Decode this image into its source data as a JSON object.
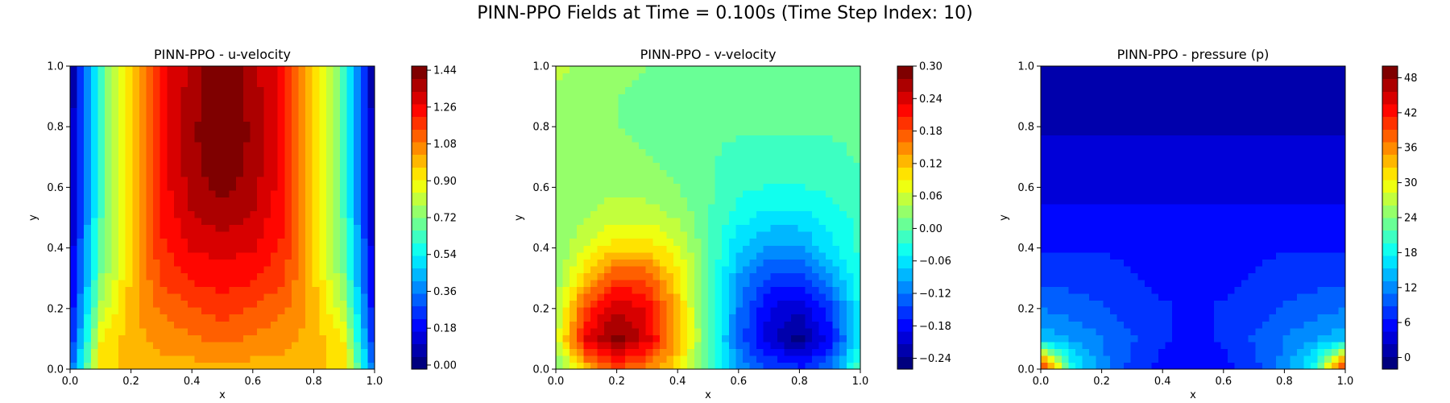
{
  "figure": {
    "suptitle": "PINN-PPO Fields at Time = 0.100s (Time Step Index: 10)"
  },
  "colormap": {
    "name": "jet",
    "stops": [
      "#00007f",
      "#0000ff",
      "#0080ff",
      "#00ffff",
      "#7fff80",
      "#ffff00",
      "#ff8000",
      "#ff0000",
      "#7f0000"
    ]
  },
  "chart_data": [
    {
      "type": "heatmap",
      "title": "PINN-PPO - u-velocity",
      "xlabel": "x",
      "ylabel": "y",
      "xlim": [
        0.0,
        1.0
      ],
      "ylim": [
        0.0,
        1.0
      ],
      "xticks": [
        "0.0",
        "0.2",
        "0.4",
        "0.6",
        "0.8",
        "1.0"
      ],
      "yticks": [
        "0.0",
        "0.2",
        "0.4",
        "0.6",
        "0.8",
        "1.0"
      ],
      "x": [
        0.0,
        0.1,
        0.2,
        0.3,
        0.4,
        0.5,
        0.6,
        0.7,
        0.8,
        0.9,
        1.0
      ],
      "y": [
        0.0,
        0.1,
        0.2,
        0.3,
        0.4,
        0.5,
        0.6,
        0.7,
        0.8,
        0.9,
        1.0
      ],
      "z": [
        [
          0.3,
          0.95,
          0.98,
          1.0,
          1.0,
          1.0,
          1.0,
          1.0,
          0.98,
          0.95,
          0.3
        ],
        [
          0.2,
          0.9,
          1.0,
          1.05,
          1.08,
          1.1,
          1.08,
          1.05,
          1.0,
          0.9,
          0.2
        ],
        [
          0.15,
          0.8,
          1.0,
          1.1,
          1.15,
          1.18,
          1.15,
          1.1,
          1.0,
          0.8,
          0.15
        ],
        [
          0.12,
          0.72,
          0.98,
          1.16,
          1.22,
          1.25,
          1.22,
          1.16,
          0.98,
          0.72,
          0.12
        ],
        [
          0.1,
          0.68,
          0.98,
          1.2,
          1.28,
          1.3,
          1.28,
          1.2,
          0.98,
          0.68,
          0.1
        ],
        [
          0.08,
          0.65,
          0.98,
          1.22,
          1.33,
          1.37,
          1.33,
          1.22,
          0.98,
          0.65,
          0.08
        ],
        [
          0.06,
          0.64,
          0.98,
          1.24,
          1.36,
          1.42,
          1.36,
          1.24,
          0.98,
          0.64,
          0.06
        ],
        [
          0.05,
          0.64,
          0.98,
          1.25,
          1.38,
          1.46,
          1.38,
          1.25,
          0.98,
          0.64,
          0.05
        ],
        [
          0.04,
          0.64,
          0.98,
          1.25,
          1.38,
          1.48,
          1.38,
          1.25,
          0.98,
          0.64,
          0.04
        ],
        [
          0.03,
          0.64,
          0.98,
          1.25,
          1.37,
          1.48,
          1.37,
          1.25,
          0.98,
          0.64,
          0.03
        ],
        [
          0.03,
          0.64,
          0.98,
          1.24,
          1.36,
          1.46,
          1.36,
          1.24,
          0.98,
          0.64,
          0.03
        ]
      ],
      "colorbar": {
        "range": [
          -0.02,
          1.46
        ],
        "ticks": [
          "0.00",
          "0.18",
          "0.36",
          "0.54",
          "0.72",
          "0.90",
          "1.08",
          "1.26",
          "1.44"
        ],
        "tick_values": [
          0.0,
          0.18,
          0.36,
          0.54,
          0.72,
          0.9,
          1.08,
          1.26,
          1.44
        ]
      }
    },
    {
      "type": "heatmap",
      "title": "PINN-PPO - v-velocity",
      "xlabel": "x",
      "ylabel": "y",
      "xlim": [
        0.0,
        1.0
      ],
      "ylim": [
        0.0,
        1.0
      ],
      "xticks": [
        "0.0",
        "0.2",
        "0.4",
        "0.6",
        "0.8",
        "1.0"
      ],
      "yticks": [
        "0.0",
        "0.2",
        "0.4",
        "0.6",
        "0.8",
        "1.0"
      ],
      "x": [
        0.0,
        0.1,
        0.2,
        0.3,
        0.4,
        0.5,
        0.6,
        0.7,
        0.8,
        0.9,
        1.0
      ],
      "y": [
        0.0,
        0.1,
        0.2,
        0.3,
        0.4,
        0.5,
        0.6,
        0.7,
        0.8,
        0.9,
        1.0
      ],
      "z": [
        [
          0.0,
          0.12,
          0.18,
          0.15,
          0.1,
          0.0,
          -0.1,
          -0.14,
          -0.16,
          -0.12,
          0.0
        ],
        [
          0.05,
          0.24,
          0.29,
          0.24,
          0.13,
          0.0,
          -0.13,
          -0.2,
          -0.25,
          -0.18,
          -0.05
        ],
        [
          0.04,
          0.19,
          0.25,
          0.23,
          0.12,
          0.0,
          -0.12,
          -0.19,
          -0.21,
          -0.15,
          -0.04
        ],
        [
          0.03,
          0.12,
          0.19,
          0.18,
          0.1,
          0.0,
          -0.1,
          -0.15,
          -0.16,
          -0.1,
          -0.03
        ],
        [
          0.02,
          0.07,
          0.11,
          0.11,
          0.07,
          0.0,
          -0.07,
          -0.1,
          -0.1,
          -0.06,
          -0.02
        ],
        [
          0.02,
          0.04,
          0.06,
          0.06,
          0.04,
          0.0,
          -0.04,
          -0.06,
          -0.06,
          -0.04,
          -0.02
        ],
        [
          0.02,
          0.03,
          0.04,
          0.03,
          0.02,
          0.0,
          -0.02,
          -0.03,
          -0.03,
          -0.02,
          -0.01
        ],
        [
          0.02,
          0.03,
          0.03,
          0.02,
          0.01,
          0.0,
          -0.01,
          -0.01,
          -0.01,
          -0.01,
          0.0
        ],
        [
          0.03,
          0.03,
          0.02,
          0.01,
          0.0,
          0.0,
          0.0,
          0.0,
          0.0,
          0.0,
          0.0
        ],
        [
          0.04,
          0.03,
          0.02,
          0.01,
          0.0,
          0.0,
          0.0,
          0.0,
          0.0,
          0.0,
          0.0
        ],
        [
          0.05,
          0.04,
          0.03,
          0.02,
          0.01,
          0.0,
          0.0,
          0.0,
          0.0,
          0.0,
          0.0
        ]
      ],
      "colorbar": {
        "range": [
          -0.26,
          0.3
        ],
        "ticks": [
          "−0.24",
          "−0.18",
          "−0.12",
          "−0.06",
          "0.00",
          "0.06",
          "0.12",
          "0.18",
          "0.24",
          "0.30"
        ],
        "tick_values": [
          -0.24,
          -0.18,
          -0.12,
          -0.06,
          0.0,
          0.06,
          0.12,
          0.18,
          0.24,
          0.3
        ]
      }
    },
    {
      "type": "heatmap",
      "title": "PINN-PPO - pressure (p)",
      "xlabel": "x",
      "ylabel": "y",
      "xlim": [
        0.0,
        1.0
      ],
      "ylim": [
        0.0,
        1.0
      ],
      "xticks": [
        "0.0",
        "0.2",
        "0.4",
        "0.6",
        "0.8",
        "1.0"
      ],
      "yticks": [
        "0.0",
        "0.2",
        "0.4",
        "0.6",
        "0.8",
        "1.0"
      ],
      "x": [
        0.0,
        0.1,
        0.2,
        0.3,
        0.4,
        0.5,
        0.6,
        0.7,
        0.8,
        0.9,
        1.0
      ],
      "y": [
        0.0,
        0.1,
        0.2,
        0.3,
        0.4,
        0.5,
        0.6,
        0.7,
        0.8,
        0.9,
        1.0
      ],
      "z": [
        [
          45,
          19,
          12,
          8,
          6,
          5,
          6,
          8,
          12,
          19,
          45
        ],
        [
          15,
          13,
          11,
          9,
          7,
          6,
          7,
          9,
          11,
          13,
          15
        ],
        [
          11,
          10,
          9,
          8,
          7,
          6,
          7,
          8,
          9,
          10,
          11
        ],
        [
          8,
          8,
          8,
          7,
          6,
          6,
          6,
          7,
          8,
          8,
          8
        ],
        [
          6.5,
          6.5,
          6.5,
          6,
          6,
          5.5,
          6,
          6,
          6.5,
          6.5,
          6.5
        ],
        [
          5,
          5,
          5,
          5,
          5,
          5,
          5,
          5,
          5,
          5,
          5
        ],
        [
          4,
          4,
          4,
          4,
          4,
          4,
          4,
          4,
          4,
          4,
          4
        ],
        [
          3,
          3,
          3,
          3,
          3,
          3,
          3,
          3,
          3,
          3,
          3
        ],
        [
          2,
          2,
          2,
          2,
          2,
          2,
          2,
          2,
          2,
          2,
          2
        ],
        [
          1,
          1,
          1,
          1,
          1,
          1,
          1,
          1,
          1,
          1,
          1
        ],
        [
          0.5,
          0.5,
          0.5,
          0.5,
          0.5,
          0.5,
          0.5,
          0.5,
          0.5,
          0.5,
          0.5
        ]
      ],
      "colorbar": {
        "range": [
          -2,
          50
        ],
        "ticks": [
          "0",
          "6",
          "12",
          "18",
          "24",
          "30",
          "36",
          "42",
          "48"
        ],
        "tick_values": [
          0,
          6,
          12,
          18,
          24,
          30,
          36,
          42,
          48
        ]
      }
    }
  ]
}
